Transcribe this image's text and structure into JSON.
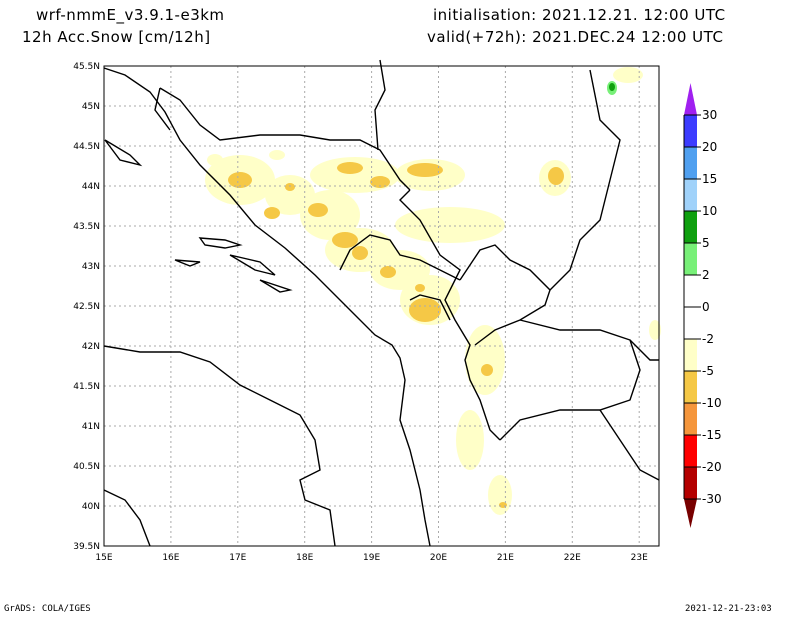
{
  "header": {
    "model": "wrf-nmmE_v3.9.1-e3km",
    "variable": "12h Acc.Snow [cm/12h]",
    "init": "initialisation: 2021.12.21.  12:00 UTC",
    "valid": "valid(+72h): 2021.DEC.24 12:00 UTC"
  },
  "map": {
    "lon_labels": [
      "15E",
      "16E",
      "17E",
      "18E",
      "19E",
      "20E",
      "21E",
      "22E",
      "23E"
    ],
    "lat_labels": [
      "45.5N",
      "45N",
      "44.5N",
      "44N",
      "43.5N",
      "43N",
      "42.5N",
      "42N",
      "41.5N",
      "41N",
      "40.5N",
      "40N",
      "39.5N"
    ]
  },
  "colorbar": {
    "labels": [
      "30",
      "20",
      "15",
      "10",
      "5",
      "2",
      "0",
      "-2",
      "-5",
      "-10",
      "-15",
      "-20",
      "-30"
    ],
    "colors": [
      "#3c3cff",
      "#50a0f0",
      "#a0d2fa",
      "#0fa00f",
      "#78f078",
      "#ffffff",
      "#ffffff",
      "#ffffc8",
      "#f5c846",
      "#f5963c",
      "#ff0000",
      "#b40000"
    ],
    "top_arrow": "#a020f0",
    "bottom_arrow": "#780000"
  },
  "footer": {
    "left": "GrADS: COLA/IGES",
    "right": "2021-12-21-23:03"
  }
}
